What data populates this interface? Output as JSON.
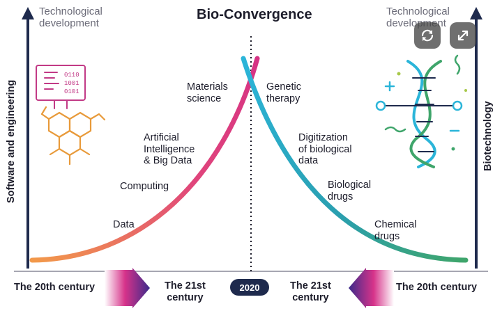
{
  "title": "Bio-Convergence",
  "left_header": [
    "Technological",
    "development"
  ],
  "right_header": [
    "Technological",
    "development"
  ],
  "left_axis_label": "Software and engineering",
  "right_axis_label": "Biotechnology",
  "left_stages": {
    "data": "Data",
    "computing": "Computing",
    "ai": [
      "Artificial",
      "Intelligence",
      "& Big Data"
    ],
    "materials": [
      "Materials",
      "science"
    ]
  },
  "right_stages": {
    "genetic": [
      "Genetic",
      "therapy"
    ],
    "digitization": [
      "Digitization",
      "of biological",
      "data"
    ],
    "bio_drugs": [
      "Biological",
      "drugs"
    ],
    "chem_drugs": [
      "Chemical",
      "drugs"
    ]
  },
  "timeline": {
    "left_start": "The 20th century",
    "left_end": [
      "The 21st",
      "century"
    ],
    "center_year": "2020",
    "right_end": [
      "The 21st",
      "century"
    ],
    "right_start": "The 20th century"
  },
  "toolbar": {
    "rotate_icon": "rotate-icon",
    "expand_icon": "expand-icon"
  },
  "colors": {
    "axis": "#1e2a4d",
    "left_curve": [
      "#f2994a",
      "#e0457b",
      "#d63384"
    ],
    "right_curve": [
      "#2bb5d9",
      "#2a9fb0",
      "#3fa56b"
    ],
    "arrow_gradient": [
      "#ffffff",
      "#d6338a",
      "#3c2a8a"
    ]
  }
}
